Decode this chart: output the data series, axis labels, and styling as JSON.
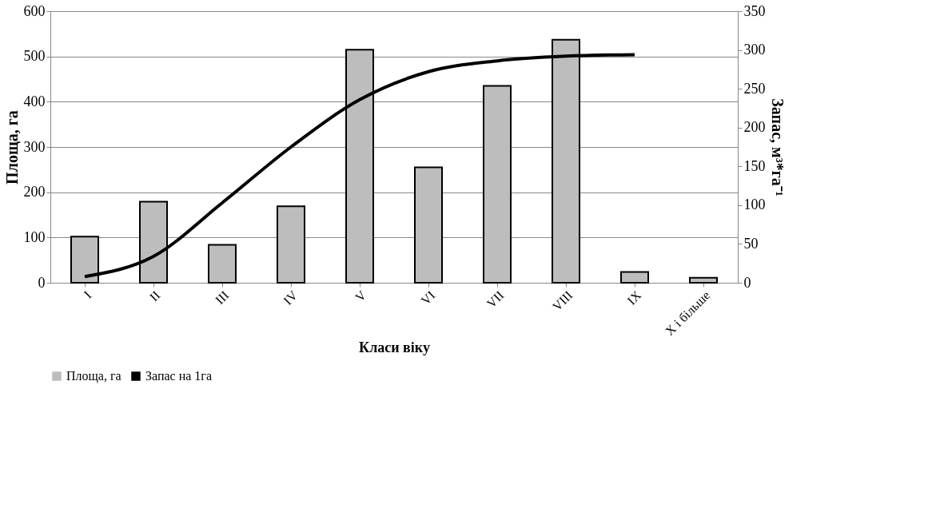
{
  "chart_data": {
    "type": "bar",
    "xlabel": "Класи віку",
    "ylabel": "Площа, га",
    "y2label": "Запас, м³*га⁻¹",
    "categories": [
      "I",
      "II",
      "III",
      "IV",
      "V",
      "VI",
      "VII",
      "VIII",
      "IX",
      "Х і більше"
    ],
    "series": [
      {
        "name": "Площа, га",
        "color": "#bdbdbd",
        "values": [
          102,
          179,
          84,
          169,
          515,
          255,
          435,
          537,
          24,
          11
        ]
      },
      {
        "name": "Запас на 1га",
        "type": "line",
        "axis": "y2",
        "color": "#000000",
        "values": [
          8,
          34,
          103,
          175,
          236,
          272,
          286,
          292,
          294,
          null
        ]
      }
    ],
    "ylim": [
      0,
      600
    ],
    "yticks": [
      0,
      100,
      200,
      300,
      400,
      500,
      600
    ],
    "y2lim": [
      0,
      350
    ],
    "y2ticks": [
      0,
      50,
      100,
      150,
      200,
      250,
      300,
      350
    ],
    "grid": "y",
    "legend": "bottom",
    "line_style": "solid",
    "marker": "none"
  }
}
